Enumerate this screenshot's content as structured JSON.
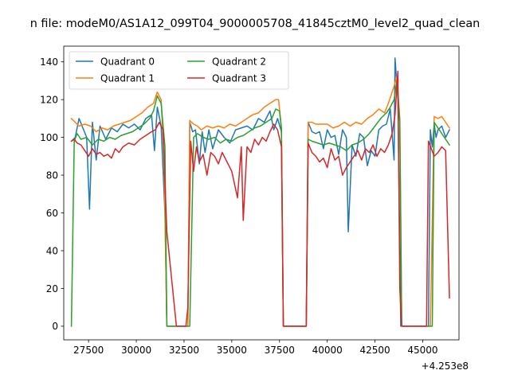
{
  "chart_data": {
    "type": "line",
    "title": "n file: modeM0/AS1A12_099T04_9000005708_41845cztM0_level2_quad_clean",
    "xlabel": "",
    "ylabel": "",
    "x_offset_label": "+4.253e8",
    "xlim": [
      26200,
      46900
    ],
    "ylim": [
      -7.2,
      148.3
    ],
    "xticks": [
      27500,
      30000,
      32500,
      35000,
      37500,
      40000,
      42500,
      45000
    ],
    "xtick_labels": [
      "27500",
      "30000",
      "32500",
      "35000",
      "37500",
      "40000",
      "42500",
      "45000"
    ],
    "yticks": [
      0,
      20,
      40,
      60,
      80,
      100,
      120,
      140
    ],
    "ytick_labels": [
      "0",
      "20",
      "40",
      "60",
      "80",
      "100",
      "120",
      "140"
    ],
    "grid": false,
    "legend": {
      "placement": "top-left",
      "columns": 2
    },
    "series": [
      {
        "name": "Quadrant 0",
        "color": "#1f77b4",
        "x": [
          26600,
          26800,
          27000,
          27200,
          27400,
          27550,
          27700,
          27900,
          28100,
          28400,
          28700,
          29000,
          29300,
          29600,
          29900,
          30200,
          30500,
          30800,
          30950,
          31100,
          31300,
          31500,
          31600,
          32100,
          32600,
          32700,
          32800,
          32950,
          33100,
          33300,
          33450,
          33600,
          33800,
          34000,
          34300,
          34600,
          34900,
          35200,
          35500,
          35800,
          36100,
          36400,
          36700,
          37000,
          37200,
          37400,
          37600,
          37700,
          38200,
          38700,
          38900,
          39000,
          39200,
          39400,
          39600,
          39800,
          40000,
          40200,
          40400,
          40600,
          40800,
          41000,
          41100,
          41300,
          41500,
          41700,
          41900,
          42100,
          42300,
          42500,
          42700,
          42900,
          43100,
          43300,
          43500,
          43550,
          43700,
          43850,
          43900,
          44400,
          44900,
          45300,
          45400,
          45500,
          45600,
          45700,
          45800,
          46000,
          46200,
          46400
        ],
        "values": [
          98,
          100,
          110,
          105,
          100,
          62,
          108,
          88,
          106,
          99,
          105,
          103,
          107,
          105,
          107,
          104,
          110,
          112,
          93,
          116,
          106,
          60,
          0,
          0,
          0,
          0,
          108,
          103,
          104,
          86,
          103,
          92,
          104,
          94,
          104,
          100,
          97,
          104,
          105,
          106,
          104,
          110,
          108,
          114,
          104,
          110,
          103,
          0,
          0,
          0,
          0,
          108,
          103,
          102,
          103,
          94,
          104,
          100,
          101,
          91,
          104,
          100,
          50,
          96,
          90,
          102,
          100,
          85,
          93,
          90,
          104,
          106,
          107,
          115,
          88,
          142,
          120,
          0,
          0,
          0,
          0,
          0,
          104,
          95,
          107,
          100,
          104,
          106,
          100,
          104
        ]
      },
      {
        "name": "Quadrant 1",
        "color": "#ff7f0e",
        "x": [
          26600,
          26800,
          27000,
          27300,
          27600,
          27900,
          28200,
          28500,
          28800,
          29100,
          29400,
          29700,
          30000,
          30300,
          30600,
          30900,
          31100,
          31300,
          31450,
          31600,
          32100,
          32600,
          32700,
          32800,
          33000,
          33200,
          33400,
          33700,
          34000,
          34300,
          34600,
          34900,
          35200,
          35500,
          35800,
          36100,
          36400,
          36700,
          37000,
          37300,
          37450,
          37600,
          37700,
          38200,
          38700,
          38900,
          39000,
          39200,
          39400,
          39700,
          40000,
          40300,
          40600,
          40900,
          41200,
          41500,
          41800,
          42100,
          42400,
          42700,
          43000,
          43200,
          43400,
          43650,
          43800,
          43900,
          44400,
          44900,
          45300,
          45400,
          45600,
          45800,
          46000,
          46200,
          46400
        ],
        "values": [
          110,
          108,
          106,
          107,
          106,
          103,
          105,
          104,
          106,
          107,
          108,
          109,
          111,
          113,
          116,
          118,
          124,
          120,
          90,
          0,
          0,
          0,
          0,
          109,
          107,
          106,
          104,
          106,
          105,
          106,
          105,
          107,
          106,
          108,
          110,
          112,
          113,
          116,
          118,
          120,
          120,
          105,
          0,
          0,
          0,
          0,
          108,
          108,
          107,
          107,
          107,
          105,
          106,
          108,
          106,
          108,
          107,
          110,
          112,
          115,
          113,
          118,
          124,
          132,
          110,
          0,
          0,
          0,
          0,
          0,
          111,
          110,
          111,
          108,
          105
        ]
      },
      {
        "name": "Quadrant 2",
        "color": "#2ca02c",
        "x": [
          26600,
          26750,
          26900,
          27100,
          27400,
          27700,
          28000,
          28300,
          28600,
          28900,
          29200,
          29500,
          29800,
          30100,
          30400,
          30700,
          30900,
          31100,
          31300,
          31500,
          31600,
          32100,
          32600,
          32800,
          33000,
          33200,
          33500,
          33800,
          34100,
          34400,
          34700,
          35000,
          35300,
          35600,
          35900,
          36200,
          36500,
          36800,
          37100,
          37300,
          37500,
          37600,
          37700,
          38200,
          38700,
          38900,
          39000,
          39200,
          39500,
          39800,
          40100,
          40400,
          40700,
          41000,
          41300,
          41600,
          41900,
          42200,
          42500,
          42800,
          43100,
          43300,
          43500,
          43650,
          43800,
          43900,
          44400,
          44900,
          45300,
          45400,
          45500,
          45600,
          45800,
          46000,
          46200,
          46400
        ],
        "values": [
          0,
          98,
          102,
          99,
          100,
          96,
          99,
          98,
          100,
          99,
          101,
          102,
          103,
          105,
          107,
          110,
          114,
          122,
          118,
          95,
          0,
          0,
          0,
          0,
          100,
          102,
          100,
          99,
          100,
          97,
          99,
          98,
          100,
          101,
          103,
          105,
          106,
          108,
          110,
          115,
          114,
          105,
          0,
          0,
          0,
          0,
          99,
          98,
          97,
          96,
          97,
          96,
          95,
          93,
          96,
          97,
          99,
          102,
          106,
          110,
          113,
          116,
          120,
          130,
          108,
          0,
          0,
          0,
          0,
          0,
          0,
          108,
          105,
          102,
          99,
          96
        ]
      },
      {
        "name": "Quadrant 3",
        "color": "#d62728",
        "x": [
          26600,
          26750,
          26900,
          27100,
          27300,
          27500,
          27700,
          27900,
          28100,
          28300,
          28500,
          28700,
          28900,
          29100,
          29300,
          29600,
          29900,
          30200,
          30500,
          30800,
          31000,
          31200,
          31400,
          31600,
          32100,
          32600,
          32700,
          32850,
          33000,
          33150,
          33300,
          33500,
          33700,
          33900,
          34100,
          34300,
          34500,
          34700,
          35000,
          35300,
          35500,
          35600,
          35800,
          36000,
          36200,
          36400,
          36600,
          36800,
          37000,
          37200,
          37400,
          37600,
          37700,
          38200,
          38700,
          38900,
          39000,
          39200,
          39400,
          39600,
          39800,
          40000,
          40200,
          40400,
          40600,
          40800,
          41000,
          41200,
          41400,
          41600,
          41800,
          42000,
          42200,
          42400,
          42600,
          42800,
          43000,
          43200,
          43400,
          43550,
          43700,
          43800,
          43900,
          44400,
          44900,
          45200,
          45300,
          45450,
          45600,
          45800,
          46000,
          46200,
          46400
        ],
        "values": [
          98,
          99,
          97,
          96,
          93,
          90,
          94,
          91,
          92,
          90,
          91,
          89,
          94,
          92,
          95,
          97,
          96,
          99,
          101,
          103,
          104,
          108,
          104,
          50,
          0,
          0,
          10,
          98,
          82,
          95,
          87,
          91,
          80,
          92,
          90,
          86,
          92,
          88,
          82,
          68,
          95,
          56,
          95,
          92,
          99,
          96,
          100,
          98,
          103,
          107,
          104,
          95,
          0,
          0,
          0,
          0,
          97,
          92,
          90,
          87,
          89,
          84,
          94,
          88,
          90,
          80,
          84,
          87,
          90,
          93,
          88,
          94,
          92,
          96,
          90,
          94,
          92,
          96,
          102,
          112,
          135,
          20,
          0,
          0,
          0,
          0,
          98,
          94,
          90,
          92,
          95,
          93,
          15
        ]
      }
    ]
  }
}
